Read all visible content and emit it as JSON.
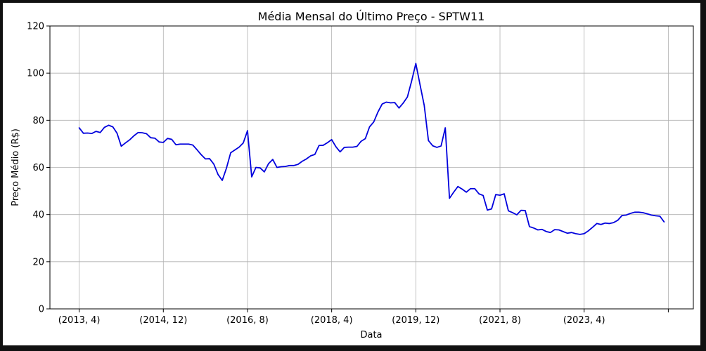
{
  "chart_data": {
    "type": "line",
    "title": "Média Mensal do Último Preço - SPTW11",
    "xlabel": "Data",
    "ylabel": "Preço Médio (R$)",
    "ylim": [
      0,
      120
    ],
    "yticks": [
      0,
      20,
      40,
      60,
      80,
      100,
      120
    ],
    "xtick_labels": [
      "(2013, 4)",
      "(2014, 12)",
      "(2016, 8)",
      "(2018, 4)",
      "(2019, 12)",
      "(2021, 8)",
      "(2023, 4)",
      ""
    ],
    "grid": true,
    "series": [
      {
        "color": "#0000dd",
        "points": [
          [
            "2013-04",
            76.8
          ],
          [
            "2013-05",
            74.5
          ],
          [
            "2013-06",
            74.6
          ],
          [
            "2013-07",
            74.4
          ],
          [
            "2013-08",
            75.3
          ],
          [
            "2013-09",
            74.8
          ],
          [
            "2013-10",
            77.0
          ],
          [
            "2013-11",
            77.9
          ],
          [
            "2013-12",
            77.2
          ],
          [
            "2014-01",
            74.5
          ],
          [
            "2014-02",
            69.0
          ],
          [
            "2014-03",
            70.4
          ],
          [
            "2014-04",
            71.7
          ],
          [
            "2014-05",
            73.4
          ],
          [
            "2014-06",
            74.8
          ],
          [
            "2014-07",
            74.7
          ],
          [
            "2014-08",
            74.3
          ],
          [
            "2014-09",
            72.6
          ],
          [
            "2014-10",
            72.4
          ],
          [
            "2014-11",
            70.8
          ],
          [
            "2014-12",
            70.6
          ],
          [
            "2015-01",
            72.3
          ],
          [
            "2015-02",
            71.9
          ],
          [
            "2015-03",
            69.6
          ],
          [
            "2015-04",
            69.9
          ],
          [
            "2015-05",
            69.9
          ],
          [
            "2015-06",
            69.9
          ],
          [
            "2015-07",
            69.5
          ],
          [
            "2015-08",
            67.5
          ],
          [
            "2015-09",
            65.4
          ],
          [
            "2015-10",
            63.6
          ],
          [
            "2015-11",
            63.7
          ],
          [
            "2015-12",
            61.4
          ],
          [
            "2016-01",
            57.0
          ],
          [
            "2016-02",
            54.5
          ],
          [
            "2016-03",
            59.7
          ],
          [
            "2016-04",
            66.2
          ],
          [
            "2016-05",
            67.4
          ],
          [
            "2016-06",
            68.6
          ],
          [
            "2016-07",
            70.4
          ],
          [
            "2016-08",
            75.6
          ],
          [
            "2016-09",
            56.0
          ],
          [
            "2016-10",
            60.0
          ],
          [
            "2016-11",
            59.8
          ],
          [
            "2016-12",
            58.1
          ],
          [
            "2017-01",
            61.6
          ],
          [
            "2017-02",
            63.4
          ],
          [
            "2017-03",
            60.0
          ],
          [
            "2017-04",
            60.3
          ],
          [
            "2017-05",
            60.4
          ],
          [
            "2017-06",
            60.8
          ],
          [
            "2017-07",
            60.8
          ],
          [
            "2017-08",
            61.3
          ],
          [
            "2017-09",
            62.6
          ],
          [
            "2017-10",
            63.6
          ],
          [
            "2017-11",
            64.9
          ],
          [
            "2017-12",
            65.5
          ],
          [
            "2018-01",
            69.3
          ],
          [
            "2018-02",
            69.4
          ],
          [
            "2018-03",
            70.5
          ],
          [
            "2018-04",
            71.8
          ],
          [
            "2018-05",
            68.8
          ],
          [
            "2018-06",
            66.6
          ],
          [
            "2018-07",
            68.5
          ],
          [
            "2018-08",
            68.6
          ],
          [
            "2018-09",
            68.6
          ],
          [
            "2018-10",
            68.9
          ],
          [
            "2018-11",
            71.1
          ],
          [
            "2018-12",
            72.2
          ],
          [
            "2019-01",
            77.2
          ],
          [
            "2019-02",
            79.3
          ],
          [
            "2019-03",
            83.5
          ],
          [
            "2019-04",
            86.9
          ],
          [
            "2019-05",
            87.7
          ],
          [
            "2019-06",
            87.4
          ],
          [
            "2019-07",
            87.5
          ],
          [
            "2019-08",
            85.2
          ],
          [
            "2019-09",
            87.3
          ],
          [
            "2019-10",
            89.9
          ],
          [
            "2019-11",
            96.6
          ],
          [
            "2019-12",
            104.1
          ],
          [
            "2020-01",
            95.1
          ],
          [
            "2020-02",
            86.3
          ],
          [
            "2020-03",
            71.4
          ],
          [
            "2020-04",
            69.2
          ],
          [
            "2020-05",
            68.5
          ],
          [
            "2020-06",
            69.1
          ],
          [
            "2020-07",
            76.8
          ],
          [
            "2020-08",
            46.9
          ],
          [
            "2020-09",
            49.5
          ],
          [
            "2020-10",
            51.9
          ],
          [
            "2020-11",
            50.8
          ],
          [
            "2020-12",
            49.5
          ],
          [
            "2021-01",
            51.0
          ],
          [
            "2021-02",
            51.0
          ],
          [
            "2021-03",
            48.8
          ],
          [
            "2021-04",
            48.1
          ],
          [
            "2021-05",
            41.9
          ],
          [
            "2021-06",
            42.4
          ],
          [
            "2021-07",
            48.5
          ],
          [
            "2021-08",
            48.2
          ],
          [
            "2021-09",
            48.8
          ],
          [
            "2021-10",
            41.6
          ],
          [
            "2021-11",
            40.8
          ],
          [
            "2021-12",
            39.9
          ],
          [
            "2022-01",
            41.8
          ],
          [
            "2022-02",
            41.7
          ],
          [
            "2022-03",
            34.9
          ],
          [
            "2022-04",
            34.3
          ],
          [
            "2022-05",
            33.5
          ],
          [
            "2022-06",
            33.7
          ],
          [
            "2022-07",
            32.8
          ],
          [
            "2022-08",
            32.4
          ],
          [
            "2022-09",
            33.6
          ],
          [
            "2022-10",
            33.5
          ],
          [
            "2022-11",
            32.8
          ],
          [
            "2022-12",
            32.1
          ],
          [
            "2023-01",
            32.4
          ],
          [
            "2023-02",
            31.9
          ],
          [
            "2023-03",
            31.6
          ],
          [
            "2023-04",
            31.9
          ],
          [
            "2023-05",
            33.1
          ],
          [
            "2023-06",
            34.6
          ],
          [
            "2023-07",
            36.2
          ],
          [
            "2023-08",
            35.8
          ],
          [
            "2023-09",
            36.4
          ],
          [
            "2023-10",
            36.2
          ],
          [
            "2023-11",
            36.6
          ],
          [
            "2023-12",
            37.6
          ],
          [
            "2024-01",
            39.6
          ],
          [
            "2024-02",
            39.8
          ],
          [
            "2024-03",
            40.5
          ],
          [
            "2024-04",
            41.0
          ],
          [
            "2024-05",
            41.0
          ],
          [
            "2024-06",
            40.8
          ],
          [
            "2024-07",
            40.3
          ],
          [
            "2024-08",
            39.8
          ],
          [
            "2024-09",
            39.5
          ],
          [
            "2024-10",
            39.3
          ],
          [
            "2024-11",
            36.9
          ]
        ]
      }
    ]
  }
}
